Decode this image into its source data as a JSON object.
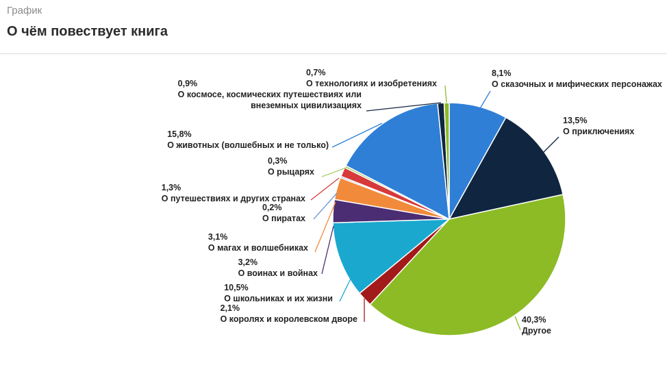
{
  "header": {
    "kicker": "График",
    "title": "О чём повествует книга"
  },
  "chart_data": {
    "type": "pie",
    "title": "О чём повествует книга",
    "slices": [
      {
        "label": "О сказочных и мифических персонажах",
        "value": 8.1,
        "value_text": "8,1%",
        "color": "#2f7fd6"
      },
      {
        "label": "О приключениях",
        "value": 13.5,
        "value_text": "13,5%",
        "color": "#10253f"
      },
      {
        "label": "Другое",
        "value": 40.3,
        "value_text": "40,3%",
        "color": "#8cbb26"
      },
      {
        "label": "О королях и королевском дворе",
        "value": 2.1,
        "value_text": "2,1%",
        "color": "#a31a1a"
      },
      {
        "label": "О школьниках и их жизни",
        "value": 10.5,
        "value_text": "10,5%",
        "color": "#1aa8cf"
      },
      {
        "label": "О воинах и войнах",
        "value": 3.2,
        "value_text": "3,2%",
        "color": "#4b2d73"
      },
      {
        "label": "О магах и волшебниках",
        "value": 3.1,
        "value_text": "3,1%",
        "color": "#f18b3b"
      },
      {
        "label": "О пиратах",
        "value": 0.2,
        "value_text": "0,2%",
        "color": "#5f8ed6"
      },
      {
        "label": "О путешествиях и других странах",
        "value": 1.3,
        "value_text": "1,3%",
        "color": "#d63a3a"
      },
      {
        "label": "О рыцарях",
        "value": 0.3,
        "value_text": "0,3%",
        "color": "#a6d06a"
      },
      {
        "label": "О животных (волшебных и не только)",
        "value": 15.8,
        "value_text": "15,8%",
        "color": "#2f7fd6"
      },
      {
        "label": "О космосе, космических путешествиях или внеземных цивилизациях",
        "value": 0.9,
        "value_text": "0,9%",
        "color": "#10253f"
      },
      {
        "label": "О технологиях и изобретениях",
        "value": 0.7,
        "value_text": "0,7%",
        "color": "#8cbb26"
      }
    ]
  }
}
